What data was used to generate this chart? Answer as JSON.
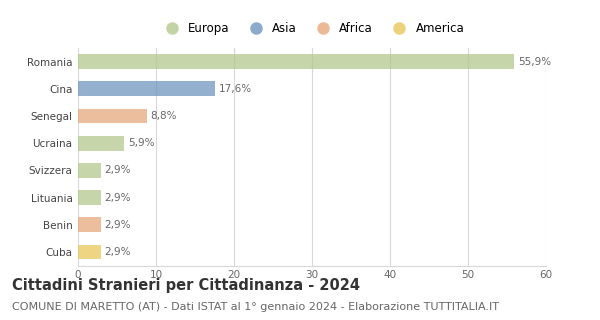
{
  "categories": [
    "Romania",
    "Cina",
    "Senegal",
    "Ucraina",
    "Svizzera",
    "Lituania",
    "Benin",
    "Cuba"
  ],
  "values": [
    55.9,
    17.6,
    8.8,
    5.9,
    2.9,
    2.9,
    2.9,
    2.9
  ],
  "labels": [
    "55,9%",
    "17,6%",
    "8,8%",
    "5,9%",
    "2,9%",
    "2,9%",
    "2,9%",
    "2,9%"
  ],
  "colors": [
    "#b5c98e",
    "#7096c0",
    "#e8a87c",
    "#b5c98e",
    "#b5c98e",
    "#b5c98e",
    "#e8a87c",
    "#e8c85a"
  ],
  "legend_labels": [
    "Europa",
    "Asia",
    "Africa",
    "America"
  ],
  "legend_colors": [
    "#b5c98e",
    "#7096c0",
    "#e8a87c",
    "#e8c85a"
  ],
  "title": "Cittadini Stranieri per Cittadinanza - 2024",
  "subtitle": "COMUNE DI MARETTO (AT) - Dati ISTAT al 1° gennaio 2024 - Elaborazione TUTTITALIA.IT",
  "xlim": [
    0,
    60
  ],
  "xticks": [
    0,
    10,
    20,
    30,
    40,
    50,
    60
  ],
  "background_color": "#ffffff",
  "grid_color": "#d8d8d8",
  "bar_height": 0.55,
  "title_fontsize": 10.5,
  "subtitle_fontsize": 8,
  "label_fontsize": 7.5,
  "tick_fontsize": 7.5,
  "legend_fontsize": 8.5
}
